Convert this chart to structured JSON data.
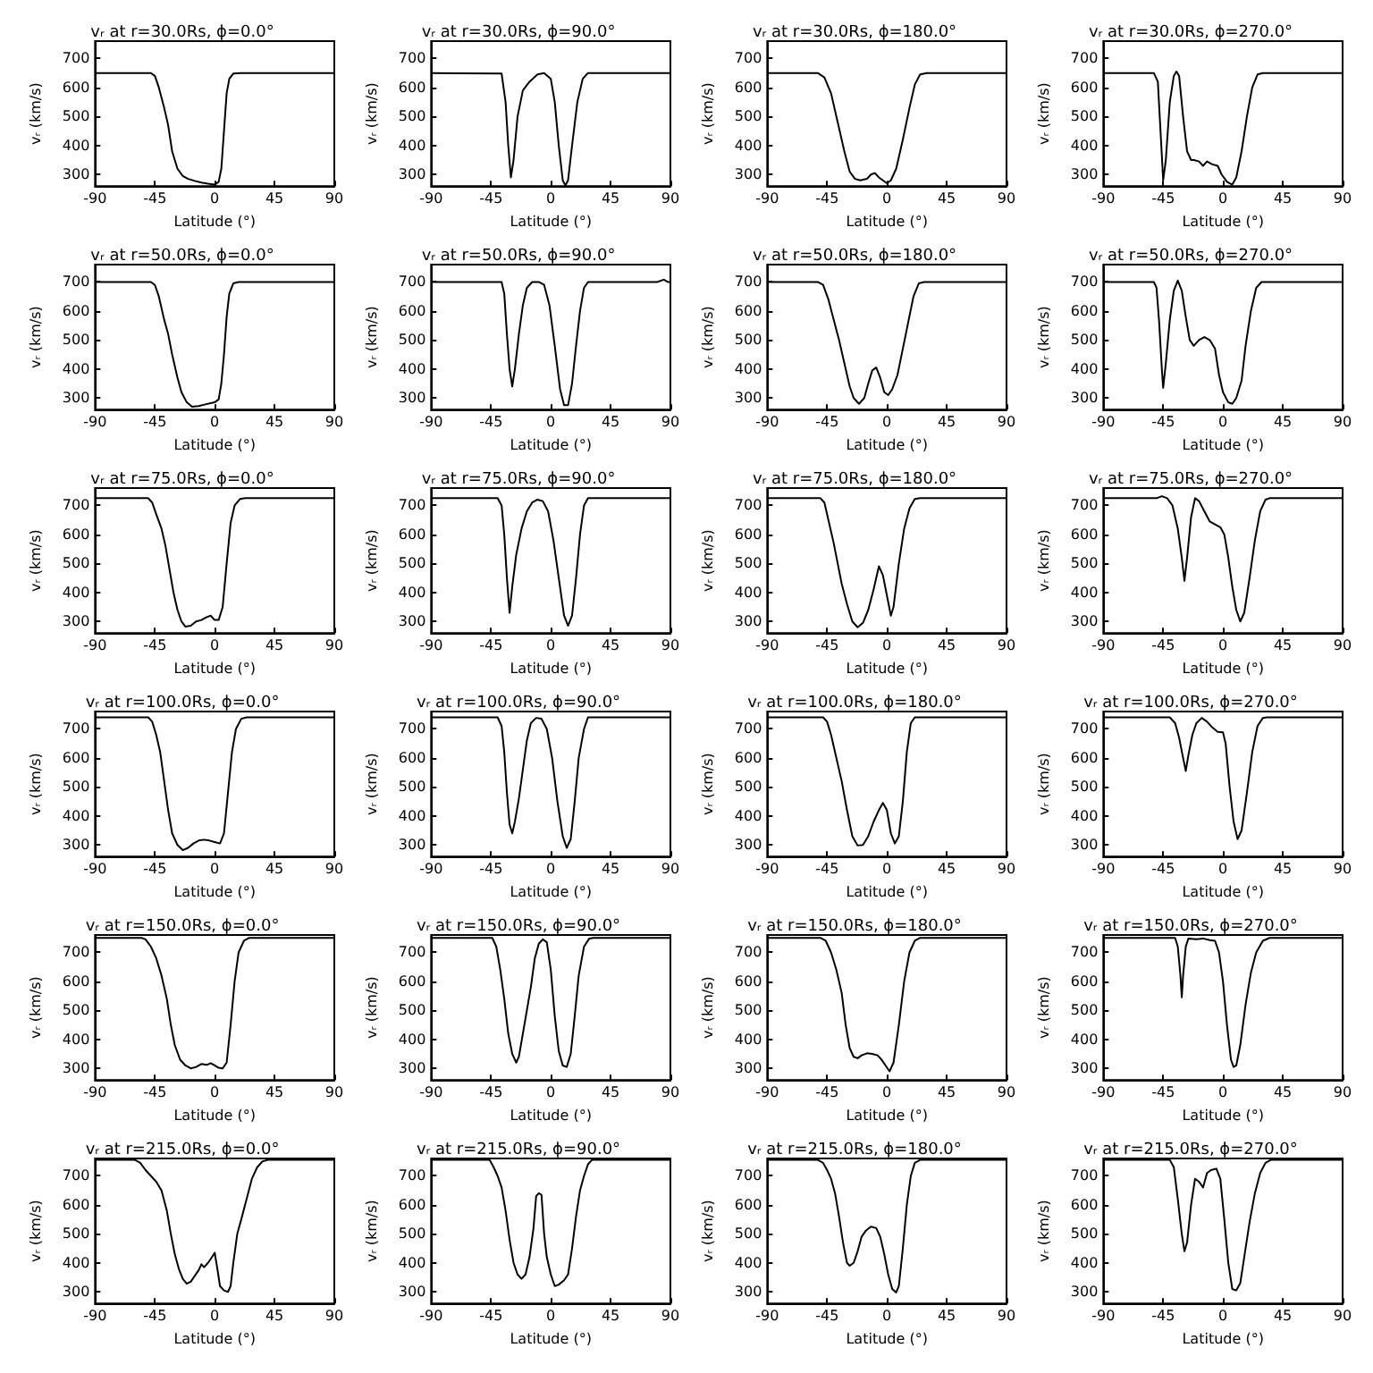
{
  "chart_data": [
    {
      "type": "line",
      "title": "vᵣ at r=30.0Rs, ϕ=0.0°",
      "xlabel": "Latitude (°)",
      "ylabel": "vᵣ (km/s)",
      "xlim": [
        -90,
        90
      ],
      "xticks": [
        -90,
        -45,
        0,
        45,
        90
      ],
      "ylim": [
        260,
        760
      ],
      "yticks": [
        300,
        400,
        500,
        600,
        700
      ],
      "marker": "none",
      "series": [
        {
          "color": "#000000",
          "x": [
            -90,
            -48,
            -45,
            -42,
            -38,
            -35,
            -32,
            -28,
            -24,
            -20,
            -15,
            -10,
            -5,
            0,
            3,
            5,
            7,
            9,
            11,
            14,
            20,
            90
          ],
          "values": [
            650,
            650,
            640,
            600,
            530,
            470,
            380,
            320,
            295,
            285,
            278,
            272,
            268,
            265,
            275,
            320,
            450,
            580,
            630,
            648,
            650,
            650
          ]
        }
      ]
    },
    {
      "type": "line",
      "title": "vᵣ at r=30.0Rs, ϕ=90.0°",
      "xlabel": "Latitude (°)",
      "ylabel": "vᵣ (km/s)",
      "xlim": [
        -90,
        90
      ],
      "xticks": [
        -90,
        -45,
        0,
        45,
        90
      ],
      "ylim": [
        260,
        760
      ],
      "yticks": [
        300,
        400,
        500,
        600,
        700
      ],
      "marker": "none",
      "series": [
        {
          "color": "#000000",
          "x": [
            -90,
            -37,
            -34,
            -32,
            -30,
            -28,
            -25,
            -21,
            -16,
            -10,
            -5,
            0,
            3,
            6,
            9,
            11,
            13,
            16,
            20,
            24,
            28,
            90
          ],
          "values": [
            650,
            648,
            550,
            400,
            290,
            350,
            500,
            590,
            620,
            645,
            650,
            630,
            550,
            400,
            280,
            262,
            280,
            400,
            550,
            630,
            650,
            650
          ]
        }
      ]
    },
    {
      "type": "line",
      "title": "vᵣ at r=30.0Rs, ϕ=180.0°",
      "xlabel": "Latitude (°)",
      "ylabel": "vᵣ (km/s)",
      "xlim": [
        -90,
        90
      ],
      "xticks": [
        -90,
        -45,
        0,
        45,
        90
      ],
      "ylim": [
        260,
        760
      ],
      "yticks": [
        300,
        400,
        500,
        600,
        700
      ],
      "marker": "none",
      "series": [
        {
          "color": "#000000",
          "x": [
            -90,
            -52,
            -47,
            -42,
            -37,
            -32,
            -28,
            -24,
            -20,
            -15,
            -12,
            -9,
            -6,
            -3,
            0,
            3,
            7,
            12,
            17,
            21,
            25,
            30,
            90
          ],
          "values": [
            650,
            650,
            635,
            580,
            480,
            380,
            310,
            285,
            280,
            285,
            300,
            305,
            290,
            280,
            270,
            280,
            320,
            420,
            530,
            610,
            645,
            650,
            650
          ]
        }
      ]
    },
    {
      "type": "line",
      "title": "vᵣ at r=30.0Rs, ϕ=270.0°",
      "xlabel": "Latitude (°)",
      "ylabel": "vᵣ (km/s)",
      "xlim": [
        -90,
        90
      ],
      "xticks": [
        -90,
        -45,
        0,
        45,
        90
      ],
      "ylim": [
        260,
        760
      ],
      "yticks": [
        300,
        400,
        500,
        600,
        700
      ],
      "marker": "none",
      "series": [
        {
          "color": "#000000",
          "x": [
            -90,
            -52,
            -49,
            -47,
            -45,
            -43,
            -40,
            -37,
            -35,
            -33,
            -30,
            -27,
            -24,
            -22,
            -18,
            -15,
            -12,
            -8,
            -4,
            -1,
            3,
            7,
            10,
            14,
            18,
            22,
            26,
            30,
            90
          ],
          "values": [
            650,
            650,
            620,
            450,
            280,
            350,
            550,
            640,
            655,
            640,
            500,
            380,
            350,
            350,
            345,
            330,
            345,
            335,
            330,
            300,
            275,
            265,
            290,
            380,
            500,
            600,
            645,
            650,
            650
          ]
        }
      ]
    },
    {
      "type": "line",
      "title": "vᵣ at r=50.0Rs, ϕ=0.0°",
      "xlabel": "Latitude (°)",
      "ylabel": "vᵣ (km/s)",
      "xlim": [
        -90,
        90
      ],
      "xticks": [
        -90,
        -45,
        0,
        45,
        90
      ],
      "ylim": [
        260,
        760
      ],
      "yticks": [
        300,
        400,
        500,
        600,
        700
      ],
      "marker": "none",
      "series": [
        {
          "color": "#000000",
          "x": [
            -90,
            -48,
            -45,
            -42,
            -38,
            -35,
            -32,
            -28,
            -25,
            -21,
            -17,
            -12,
            -7,
            -3,
            0,
            3,
            5,
            7,
            9,
            11,
            14,
            18,
            90
          ],
          "values": [
            700,
            700,
            690,
            650,
            570,
            520,
            450,
            370,
            320,
            285,
            270,
            272,
            278,
            282,
            285,
            295,
            350,
            450,
            580,
            660,
            695,
            700,
            700
          ]
        }
      ]
    },
    {
      "type": "line",
      "title": "vᵣ at r=50.0Rs, ϕ=90.0°",
      "xlabel": "Latitude (°)",
      "ylabel": "vᵣ (km/s)",
      "xlim": [
        -90,
        90
      ],
      "xticks": [
        -90,
        -45,
        0,
        45,
        90
      ],
      "ylim": [
        260,
        760
      ],
      "yticks": [
        300,
        400,
        500,
        600,
        700
      ],
      "marker": "none",
      "series": [
        {
          "color": "#000000",
          "x": [
            -90,
            -37,
            -35,
            -33,
            -31,
            -29,
            -27,
            -24,
            -21,
            -18,
            -14,
            -9,
            -5,
            -1,
            3,
            7,
            10,
            13,
            16,
            19,
            22,
            25,
            28,
            80,
            85,
            88,
            90
          ],
          "values": [
            700,
            700,
            660,
            520,
            400,
            340,
            400,
            520,
            620,
            680,
            700,
            700,
            690,
            620,
            480,
            330,
            275,
            275,
            350,
            480,
            600,
            680,
            700,
            700,
            708,
            700,
            700
          ]
        }
      ]
    },
    {
      "type": "line",
      "title": "vᵣ at r=50.0Rs, ϕ=180.0°",
      "xlabel": "Latitude (°)",
      "ylabel": "vᵣ (km/s)",
      "xlim": [
        -90,
        90
      ],
      "xticks": [
        -90,
        -45,
        0,
        45,
        90
      ],
      "ylim": [
        260,
        760
      ],
      "yticks": [
        300,
        400,
        500,
        600,
        700
      ],
      "marker": "none",
      "series": [
        {
          "color": "#000000",
          "x": [
            -90,
            -52,
            -48,
            -44,
            -40,
            -36,
            -32,
            -28,
            -25,
            -21,
            -17,
            -14,
            -11,
            -8,
            -5,
            -2,
            1,
            4,
            8,
            12,
            16,
            20,
            24,
            28,
            90
          ],
          "values": [
            700,
            700,
            690,
            640,
            570,
            500,
            420,
            340,
            300,
            280,
            300,
            350,
            395,
            405,
            370,
            320,
            310,
            330,
            380,
            470,
            560,
            650,
            695,
            700,
            700
          ]
        }
      ]
    },
    {
      "type": "line",
      "title": "vᵣ at r=50.0Rs, ϕ=270.0°",
      "xlabel": "Latitude (°)",
      "ylabel": "vᵣ (km/s)",
      "xlim": [
        -90,
        90
      ],
      "xticks": [
        -90,
        -45,
        0,
        45,
        90
      ],
      "ylim": [
        260,
        760
      ],
      "yticks": [
        300,
        400,
        500,
        600,
        700
      ],
      "marker": "none",
      "series": [
        {
          "color": "#000000",
          "x": [
            -90,
            -52,
            -50,
            -48,
            -46,
            -45,
            -43,
            -40,
            -37,
            -34,
            -31,
            -28,
            -25,
            -22,
            -18,
            -14,
            -10,
            -6,
            -3,
            0,
            4,
            7,
            10,
            14,
            17,
            21,
            25,
            29,
            90
          ],
          "values": [
            700,
            700,
            680,
            560,
            400,
            335,
            420,
            570,
            670,
            705,
            670,
            580,
            500,
            480,
            500,
            510,
            500,
            470,
            380,
            320,
            285,
            280,
            300,
            360,
            480,
            600,
            680,
            700,
            700
          ]
        }
      ]
    },
    {
      "type": "line",
      "title": "vᵣ at r=75.0Rs, ϕ=0.0°",
      "xlabel": "Latitude (°)",
      "ylabel": "vᵣ (km/s)",
      "xlim": [
        -90,
        90
      ],
      "xticks": [
        -90,
        -45,
        0,
        45,
        90
      ],
      "ylim": [
        260,
        760
      ],
      "yticks": [
        300,
        400,
        500,
        600,
        700
      ],
      "marker": "none",
      "series": [
        {
          "color": "#000000",
          "x": [
            -90,
            -50,
            -47,
            -44,
            -40,
            -37,
            -34,
            -31,
            -28,
            -25,
            -22,
            -18,
            -14,
            -10,
            -6,
            -3,
            0,
            3,
            6,
            9,
            12,
            15,
            19,
            23,
            90
          ],
          "values": [
            725,
            725,
            710,
            670,
            620,
            560,
            480,
            400,
            340,
            300,
            282,
            285,
            300,
            305,
            315,
            320,
            305,
            305,
            350,
            500,
            640,
            700,
            722,
            725,
            725
          ]
        }
      ]
    },
    {
      "type": "line",
      "title": "vᵣ at r=75.0Rs, ϕ=90.0°",
      "xlabel": "Latitude (°)",
      "ylabel": "vᵣ (km/s)",
      "xlim": [
        -90,
        90
      ],
      "xticks": [
        -90,
        -45,
        0,
        45,
        90
      ],
      "ylim": [
        260,
        760
      ],
      "yticks": [
        300,
        400,
        500,
        600,
        700
      ],
      "marker": "none",
      "series": [
        {
          "color": "#000000",
          "x": [
            -90,
            -40,
            -37,
            -35,
            -33,
            -31,
            -29,
            -26,
            -22,
            -18,
            -14,
            -10,
            -6,
            -2,
            2,
            6,
            10,
            13,
            16,
            19,
            22,
            25,
            28,
            90
          ],
          "values": [
            725,
            725,
            700,
            600,
            450,
            330,
            420,
            530,
            620,
            680,
            710,
            720,
            715,
            680,
            580,
            450,
            320,
            285,
            320,
            450,
            600,
            700,
            725,
            725
          ]
        }
      ]
    },
    {
      "type": "line",
      "title": "vᵣ at r=75.0Rs, ϕ=180.0°",
      "xlabel": "Latitude (°)",
      "ylabel": "vᵣ (km/s)",
      "xlim": [
        -90,
        90
      ],
      "xticks": [
        -90,
        -45,
        0,
        45,
        90
      ],
      "ylim": [
        260,
        760
      ],
      "yticks": [
        300,
        400,
        500,
        600,
        700
      ],
      "marker": "none",
      "series": [
        {
          "color": "#000000",
          "x": [
            -90,
            -50,
            -47,
            -44,
            -40,
            -37,
            -34,
            -30,
            -26,
            -22,
            -18,
            -14,
            -10,
            -6,
            -3,
            0,
            3,
            5,
            9,
            13,
            17,
            21,
            25,
            90
          ],
          "values": [
            725,
            725,
            710,
            650,
            570,
            500,
            430,
            360,
            300,
            280,
            295,
            340,
            410,
            490,
            460,
            390,
            320,
            350,
            500,
            620,
            690,
            722,
            725,
            725
          ]
        }
      ]
    },
    {
      "type": "line",
      "title": "vᵣ at r=75.0Rs, ϕ=270.0°",
      "xlabel": "Latitude (°)",
      "ylabel": "vᵣ (km/s)",
      "xlim": [
        -90,
        90
      ],
      "xticks": [
        -90,
        -45,
        0,
        45,
        90
      ],
      "ylim": [
        260,
        760
      ],
      "yticks": [
        300,
        400,
        500,
        600,
        700
      ],
      "marker": "none",
      "series": [
        {
          "color": "#000000",
          "x": [
            -90,
            -50,
            -46,
            -42,
            -38,
            -34,
            -31,
            -29,
            -27,
            -24,
            -21,
            -18,
            -14,
            -10,
            -6,
            -2,
            1,
            4,
            7,
            10,
            13,
            16,
            20,
            24,
            28,
            32,
            35,
            90
          ],
          "values": [
            725,
            725,
            732,
            725,
            700,
            620,
            520,
            440,
            520,
            660,
            725,
            715,
            680,
            645,
            635,
            625,
            600,
            520,
            420,
            340,
            300,
            330,
            450,
            580,
            680,
            720,
            725,
            725
          ]
        }
      ]
    },
    {
      "type": "line",
      "title": "vᵣ at r=100.0Rs, ϕ=0.0°",
      "xlabel": "Latitude (°)",
      "ylabel": "vᵣ (km/s)",
      "xlim": [
        -90,
        90
      ],
      "xticks": [
        -90,
        -45,
        0,
        45,
        90
      ],
      "ylim": [
        260,
        760
      ],
      "yticks": [
        300,
        400,
        500,
        600,
        700
      ],
      "marker": "none",
      "series": [
        {
          "color": "#000000",
          "x": [
            -90,
            -50,
            -47,
            -44,
            -41,
            -38,
            -35,
            -32,
            -28,
            -24,
            -20,
            -16,
            -12,
            -8,
            -4,
            0,
            4,
            7,
            10,
            13,
            16,
            20,
            24,
            90
          ],
          "values": [
            740,
            740,
            725,
            680,
            620,
            520,
            420,
            340,
            300,
            282,
            290,
            305,
            315,
            318,
            315,
            310,
            305,
            340,
            480,
            620,
            700,
            735,
            740,
            740
          ]
        }
      ]
    },
    {
      "type": "line",
      "title": "vᵣ at r=100.0Rs, ϕ=90.0°",
      "xlabel": "Latitude (°)",
      "ylabel": "vᵣ (km/s)",
      "xlim": [
        -90,
        90
      ],
      "xticks": [
        -90,
        -45,
        0,
        45,
        90
      ],
      "ylim": [
        260,
        760
      ],
      "yticks": [
        300,
        400,
        500,
        600,
        700
      ],
      "marker": "none",
      "series": [
        {
          "color": "#000000",
          "x": [
            -90,
            -40,
            -37,
            -35,
            -33,
            -31,
            -29,
            -27,
            -24,
            -21,
            -18,
            -15,
            -11,
            -7,
            -3,
            1,
            5,
            9,
            12,
            15,
            18,
            21,
            25,
            28,
            90
          ],
          "values": [
            740,
            740,
            710,
            620,
            480,
            370,
            340,
            380,
            460,
            560,
            660,
            720,
            738,
            735,
            700,
            600,
            450,
            330,
            290,
            320,
            450,
            600,
            700,
            740,
            740
          ]
        }
      ]
    },
    {
      "type": "line",
      "title": "vᵣ at r=100.0Rs, ϕ=180.0°",
      "xlabel": "Latitude (°)",
      "ylabel": "vᵣ (km/s)",
      "xlim": [
        -90,
        90
      ],
      "xticks": [
        -90,
        -45,
        0,
        45,
        90
      ],
      "ylim": [
        260,
        760
      ],
      "yticks": [
        300,
        400,
        500,
        600,
        700
      ],
      "marker": "none",
      "series": [
        {
          "color": "#000000",
          "x": [
            -90,
            -48,
            -45,
            -42,
            -38,
            -34,
            -30,
            -26,
            -22,
            -18,
            -14,
            -10,
            -6,
            -3,
            0,
            3,
            6,
            9,
            12,
            15,
            18,
            21,
            90
          ],
          "values": [
            740,
            740,
            725,
            680,
            600,
            520,
            420,
            330,
            298,
            300,
            330,
            380,
            420,
            445,
            420,
            340,
            305,
            330,
            450,
            620,
            720,
            740,
            740
          ]
        }
      ]
    },
    {
      "type": "line",
      "title": "vᵣ at r=100.0Rs, ϕ=270.0°",
      "xlabel": "Latitude (°)",
      "ylabel": "vᵣ (km/s)",
      "xlim": [
        -90,
        90
      ],
      "xticks": [
        -90,
        -45,
        0,
        45,
        90
      ],
      "ylim": [
        260,
        760
      ],
      "yticks": [
        300,
        400,
        500,
        600,
        700
      ],
      "marker": "none",
      "series": [
        {
          "color": "#000000",
          "x": [
            -90,
            -40,
            -36,
            -33,
            -30,
            -28,
            -26,
            -23,
            -20,
            -16,
            -12,
            -8,
            -4,
            0,
            2,
            5,
            8,
            11,
            14,
            18,
            22,
            26,
            30,
            33,
            90
          ],
          "values": [
            740,
            740,
            720,
            670,
            600,
            555,
            610,
            680,
            720,
            738,
            725,
            705,
            690,
            688,
            650,
            500,
            380,
            320,
            350,
            480,
            620,
            710,
            738,
            740,
            740
          ]
        }
      ]
    },
    {
      "type": "line",
      "title": "vᵣ at r=150.0Rs, ϕ=0.0°",
      "xlabel": "Latitude (°)",
      "ylabel": "vᵣ (km/s)",
      "xlim": [
        -90,
        90
      ],
      "xticks": [
        -90,
        -45,
        0,
        45,
        90
      ],
      "ylim": [
        260,
        760
      ],
      "yticks": [
        300,
        400,
        500,
        600,
        700
      ],
      "marker": "none",
      "series": [
        {
          "color": "#000000",
          "x": [
            -90,
            -55,
            -52,
            -48,
            -44,
            -40,
            -36,
            -33,
            -30,
            -26,
            -22,
            -18,
            -14,
            -10,
            -6,
            -3,
            0,
            3,
            6,
            9,
            12,
            15,
            18,
            22,
            26,
            90
          ],
          "values": [
            750,
            750,
            745,
            720,
            680,
            620,
            540,
            450,
            380,
            330,
            310,
            300,
            305,
            315,
            312,
            318,
            310,
            302,
            300,
            320,
            450,
            600,
            700,
            740,
            750,
            750
          ]
        }
      ]
    },
    {
      "type": "line",
      "title": "vᵣ at r=150.0Rs, ϕ=90.0°",
      "xlabel": "Latitude (°)",
      "ylabel": "vᵣ (km/s)",
      "xlim": [
        -90,
        90
      ],
      "xticks": [
        -90,
        -45,
        0,
        45,
        90
      ],
      "ylim": [
        260,
        760
      ],
      "yticks": [
        300,
        400,
        500,
        600,
        700
      ],
      "marker": "none",
      "series": [
        {
          "color": "#000000",
          "x": [
            -90,
            -44,
            -41,
            -38,
            -35,
            -32,
            -29,
            -26,
            -24,
            -21,
            -18,
            -15,
            -12,
            -9,
            -6,
            -3,
            0,
            3,
            6,
            9,
            12,
            15,
            18,
            21,
            25,
            29,
            32,
            90
          ],
          "values": [
            750,
            750,
            720,
            640,
            540,
            420,
            350,
            320,
            340,
            420,
            500,
            580,
            680,
            730,
            745,
            735,
            640,
            480,
            360,
            310,
            305,
            350,
            480,
            620,
            720,
            748,
            750,
            750
          ]
        }
      ]
    },
    {
      "type": "line",
      "title": "vᵣ at r=150.0Rs, ϕ=180.0°",
      "xlabel": "Latitude (°)",
      "ylabel": "vᵣ (km/s)",
      "xlim": [
        -90,
        90
      ],
      "xticks": [
        -90,
        -45,
        0,
        45,
        90
      ],
      "ylim": [
        260,
        760
      ],
      "yticks": [
        300,
        400,
        500,
        600,
        700
      ],
      "marker": "none",
      "series": [
        {
          "color": "#000000",
          "x": [
            -90,
            -50,
            -46,
            -42,
            -38,
            -34,
            -31,
            -28,
            -25,
            -22,
            -19,
            -15,
            -11,
            -7,
            -4,
            -1,
            2,
            5,
            9,
            13,
            17,
            21,
            25,
            90
          ],
          "values": [
            750,
            750,
            740,
            700,
            640,
            560,
            450,
            370,
            340,
            335,
            345,
            352,
            350,
            345,
            330,
            310,
            290,
            320,
            450,
            600,
            700,
            740,
            750,
            750
          ]
        }
      ]
    },
    {
      "type": "line",
      "title": "vᵣ at r=150.0Rs, ϕ=270.0°",
      "xlabel": "Latitude (°)",
      "ylabel": "vᵣ (km/s)",
      "xlim": [
        -90,
        90
      ],
      "xticks": [
        -90,
        -45,
        0,
        45,
        90
      ],
      "ylim": [
        260,
        760
      ],
      "yticks": [
        300,
        400,
        500,
        600,
        700
      ],
      "marker": "none",
      "series": [
        {
          "color": "#000000",
          "x": [
            -90,
            -36,
            -34,
            -32,
            -31,
            -30,
            -28,
            -26,
            -20,
            -15,
            -10,
            -6,
            -3,
            0,
            3,
            6,
            8,
            10,
            13,
            17,
            21,
            25,
            30,
            35,
            90
          ],
          "values": [
            750,
            750,
            720,
            620,
            545,
            620,
            720,
            748,
            745,
            748,
            742,
            740,
            700,
            600,
            450,
            330,
            305,
            310,
            380,
            520,
            630,
            700,
            740,
            750,
            750
          ]
        }
      ]
    },
    {
      "type": "line",
      "title": "vᵣ at r=215.0Rs, ϕ=0.0°",
      "xlabel": "Latitude (°)",
      "ylabel": "vᵣ (km/s)",
      "xlim": [
        -90,
        90
      ],
      "xticks": [
        -90,
        -45,
        0,
        45,
        90
      ],
      "ylim": [
        260,
        760
      ],
      "yticks": [
        300,
        400,
        500,
        600,
        700
      ],
      "marker": "none",
      "series": [
        {
          "color": "#000000",
          "x": [
            -90,
            -60,
            -56,
            -52,
            -48,
            -44,
            -40,
            -36,
            -33,
            -30,
            -27,
            -24,
            -21,
            -18,
            -15,
            -12,
            -10,
            -8,
            -5,
            -2,
            0,
            2,
            4,
            7,
            10,
            12,
            14,
            17,
            20,
            24,
            28,
            32,
            36,
            40,
            90
          ],
          "values": [
            755,
            755,
            745,
            720,
            700,
            680,
            650,
            580,
            500,
            430,
            380,
            345,
            328,
            335,
            355,
            375,
            395,
            385,
            400,
            420,
            435,
            380,
            320,
            305,
            300,
            320,
            400,
            500,
            550,
            620,
            690,
            730,
            750,
            755,
            755
          ]
        }
      ]
    },
    {
      "type": "line",
      "title": "vᵣ at r=215.0Rs, ϕ=90.0°",
      "xlabel": "Latitude (°)",
      "ylabel": "vᵣ (km/s)",
      "xlim": [
        -90,
        90
      ],
      "xticks": [
        -90,
        -45,
        0,
        45,
        90
      ],
      "ylim": [
        260,
        760
      ],
      "yticks": [
        300,
        400,
        500,
        600,
        700
      ],
      "marker": "none",
      "series": [
        {
          "color": "#000000",
          "x": [
            -90,
            -46,
            -43,
            -40,
            -37,
            -34,
            -31,
            -28,
            -25,
            -22,
            -19,
            -16,
            -13,
            -11,
            -9,
            -7,
            -5,
            -3,
            0,
            3,
            6,
            10,
            13,
            16,
            19,
            22,
            25,
            28,
            31,
            90
          ],
          "values": [
            755,
            755,
            730,
            700,
            660,
            580,
            480,
            400,
            360,
            345,
            360,
            420,
            520,
            630,
            640,
            635,
            500,
            420,
            360,
            320,
            325,
            340,
            360,
            450,
            560,
            650,
            700,
            740,
            755,
            755
          ]
        }
      ]
    },
    {
      "type": "line",
      "title": "vᵣ at r=215.0Rs, ϕ=180.0°",
      "xlabel": "Latitude (°)",
      "ylabel": "vᵣ (km/s)",
      "xlim": [
        -90,
        90
      ],
      "xticks": [
        -90,
        -45,
        0,
        45,
        90
      ],
      "ylim": [
        260,
        760
      ],
      "yticks": [
        300,
        400,
        500,
        600,
        700
      ],
      "marker": "none",
      "series": [
        {
          "color": "#000000",
          "x": [
            -90,
            -52,
            -48,
            -45,
            -42,
            -39,
            -36,
            -33,
            -30,
            -28,
            -25,
            -22,
            -19,
            -16,
            -12,
            -8,
            -5,
            -2,
            1,
            4,
            7,
            9,
            12,
            15,
            18,
            21,
            25,
            90
          ],
          "values": [
            755,
            755,
            745,
            720,
            690,
            640,
            560,
            470,
            400,
            390,
            400,
            440,
            490,
            510,
            525,
            520,
            490,
            430,
            360,
            310,
            298,
            320,
            450,
            600,
            700,
            745,
            755,
            755
          ]
        }
      ]
    },
    {
      "type": "line",
      "title": "vᵣ at r=215.0Rs, ϕ=270.0°",
      "xlabel": "Latitude (°)",
      "ylabel": "vᵣ (km/s)",
      "xlim": [
        -90,
        90
      ],
      "xticks": [
        -90,
        -45,
        0,
        45,
        90
      ],
      "ylim": [
        260,
        760
      ],
      "yticks": [
        300,
        400,
        500,
        600,
        700
      ],
      "marker": "none",
      "series": [
        {
          "color": "#000000",
          "x": [
            -90,
            -40,
            -37,
            -34,
            -31,
            -29,
            -27,
            -24,
            -21,
            -18,
            -15,
            -12,
            -9,
            -5,
            -2,
            1,
            4,
            7,
            10,
            13,
            16,
            20,
            24,
            28,
            32,
            36,
            90
          ],
          "values": [
            755,
            755,
            730,
            620,
            500,
            440,
            470,
            600,
            690,
            680,
            660,
            710,
            720,
            725,
            690,
            550,
            400,
            310,
            305,
            330,
            420,
            540,
            640,
            710,
            745,
            755,
            755
          ]
        }
      ]
    }
  ]
}
